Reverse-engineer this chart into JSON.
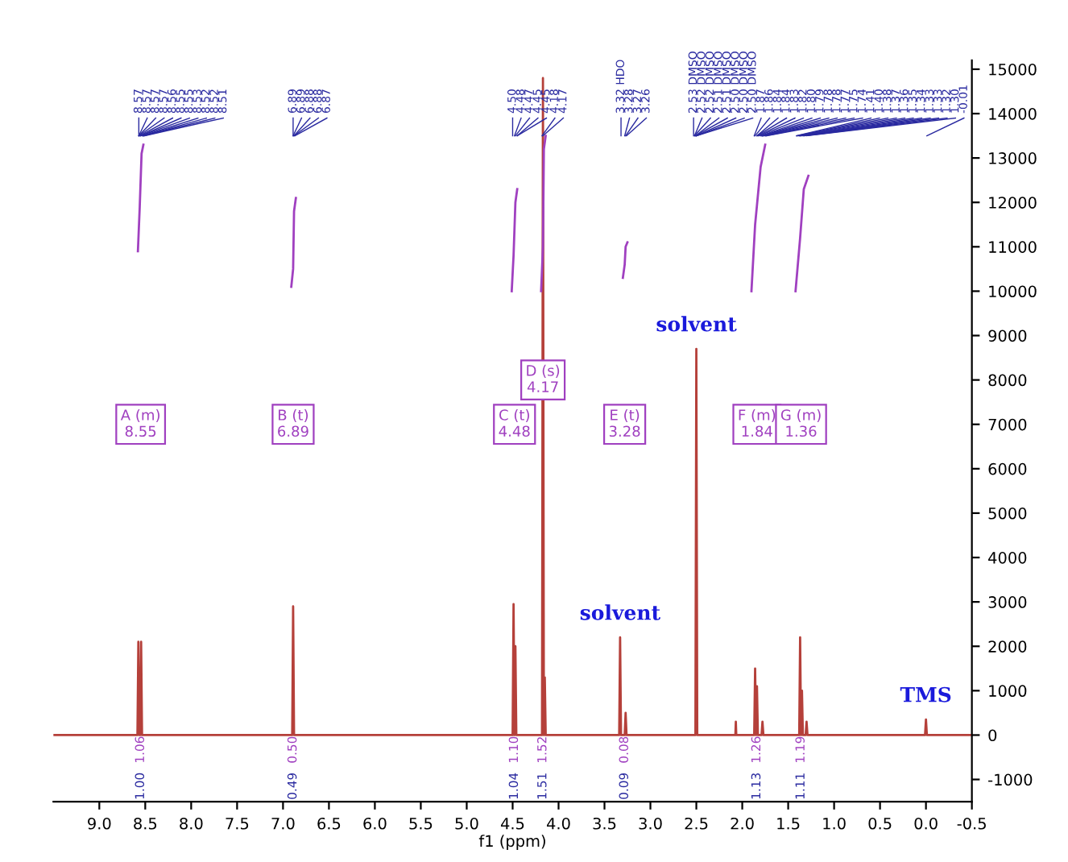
{
  "chart_data": {
    "type": "line",
    "xlabel": "f1 (ppm)",
    "xlim": [
      9.5,
      -0.5
    ],
    "xticks": [
      {
        "value": 9,
        "label": "9.0"
      },
      {
        "value": 8.5,
        "label": "8.5"
      },
      {
        "value": 8,
        "label": "8.0"
      },
      {
        "value": 7.5,
        "label": "7.5"
      },
      {
        "value": 7,
        "label": "7.0"
      },
      {
        "value": 6.5,
        "label": "6.5"
      },
      {
        "value": 6,
        "label": "6.0"
      },
      {
        "value": 5.5,
        "label": "5.5"
      },
      {
        "value": 5,
        "label": "5.0"
      },
      {
        "value": 4.5,
        "label": "4.5"
      },
      {
        "value": 4,
        "label": "4.0"
      },
      {
        "value": 3.5,
        "label": "3.5"
      },
      {
        "value": 3,
        "label": "3.0"
      },
      {
        "value": 2.5,
        "label": "2.5"
      },
      {
        "value": 2,
        "label": "2.0"
      },
      {
        "value": 1.5,
        "label": "1.5"
      },
      {
        "value": 1,
        "label": "1.0"
      },
      {
        "value": 0.5,
        "label": "0.5"
      },
      {
        "value": 0,
        "label": "0.0"
      },
      {
        "value": -0.5,
        "label": "-0.5"
      }
    ],
    "ylim": [
      -1500,
      15200
    ],
    "yticks": [
      -1000,
      0,
      1000,
      2000,
      3000,
      4000,
      5000,
      6000,
      7000,
      8000,
      9000,
      10000,
      11000,
      12000,
      13000,
      14000,
      15000
    ],
    "grid": false,
    "legend": false,
    "series": [
      {
        "color": "#b5403a",
        "x": [
          9.5,
          8.585,
          8.575,
          8.565,
          8.555,
          8.545,
          8.535,
          6.9,
          6.89,
          6.88,
          4.5,
          4.49,
          4.48,
          4.47,
          4.46,
          4.18,
          4.17,
          4.16,
          4.15,
          4.14,
          3.34,
          3.33,
          3.32,
          3.28,
          3.27,
          3.26,
          2.51,
          2.5,
          2.49,
          2.075,
          2.07,
          2.065,
          1.87,
          1.86,
          1.85,
          1.84,
          1.83,
          1.79,
          1.78,
          1.77,
          1.38,
          1.37,
          1.36,
          1.35,
          1.34,
          1.31,
          1.3,
          1.29,
          0.01,
          0.0,
          -0.01,
          -0.5
        ],
        "values": [
          0,
          0,
          2100,
          0,
          0,
          2100,
          0,
          0,
          2900,
          0,
          0,
          2950,
          0,
          2000,
          0,
          0,
          14800,
          0,
          1300,
          0,
          0,
          2200,
          0,
          0,
          500,
          0,
          0,
          8700,
          0,
          0,
          300,
          0,
          0,
          1500,
          0,
          1100,
          0,
          0,
          300,
          0,
          0,
          2200,
          0,
          1000,
          0,
          0,
          300,
          0,
          0,
          350,
          0,
          0
        ]
      },
      {
        "color": "#a040c0",
        "x": [
          8.58,
          8.56,
          8.54,
          8.52,
          null,
          6.91,
          6.89,
          6.88,
          6.86,
          null,
          4.51,
          4.49,
          4.47,
          4.45,
          null,
          4.19,
          4.17,
          4.16,
          4.14,
          null,
          3.3,
          3.28,
          3.27,
          3.25,
          null,
          1.9,
          1.86,
          1.8,
          1.75,
          null,
          1.42,
          1.37,
          1.33,
          1.28
        ],
        "values": [
          10900,
          11900,
          13100,
          13300,
          null,
          10100,
          10500,
          11800,
          12100,
          null,
          10000,
          10800,
          12000,
          12300,
          null,
          10000,
          11000,
          13200,
          13500,
          null,
          10300,
          10600,
          11000,
          11100,
          null,
          10000,
          11500,
          12800,
          13300,
          null,
          10000,
          11200,
          12300,
          12600
        ]
      }
    ],
    "annotations": [
      {
        "text": "A (m)\n8.55",
        "x": 8.55,
        "y": 7000
      },
      {
        "text": "B (t)\n6.89",
        "x": 6.89,
        "y": 7000
      },
      {
        "text": "C (t)\n4.48",
        "x": 4.48,
        "y": 7000
      },
      {
        "text": "D (s)\n4.17",
        "x": 4.17,
        "y": 8000
      },
      {
        "text": "E (t)\n3.28",
        "x": 3.28,
        "y": 7000
      },
      {
        "text": "F (m)\n1.84",
        "x": 1.84,
        "y": 7000
      },
      {
        "text": "G (m)\n1.36",
        "x": 1.36,
        "y": 7000
      },
      {
        "text": "solvent",
        "x": 3.33,
        "y": 2200
      },
      {
        "text": "solvent",
        "x": 2.5,
        "y": 8700
      },
      {
        "text": "TMS",
        "x": 0.0,
        "y": 350
      },
      "1.00",
      "1.06",
      "0.49",
      "0.50",
      "1.04",
      "1.10",
      "1.51",
      "1.52",
      "0.09",
      "0.08",
      "1.13",
      "1.26",
      "1.11",
      "1.19",
      "8.57",
      "8.57",
      "8.57",
      "8.57",
      "8.56",
      "8.55",
      "8.55",
      "8.53",
      "8.52",
      "8.52",
      "8.51",
      "6.89",
      "6.89",
      "6.88",
      "6.88",
      "6.87",
      "4.50",
      "4.48",
      "4.47",
      "4.45",
      "4.45",
      "4.18",
      "4.17",
      "3.32 HDO",
      "3.28",
      "3.27",
      "3.26",
      "2.53 DMSO",
      "2.52 DMSO",
      "2.52 DMSO",
      "2.51 DMSO",
      "2.51 DMSO",
      "2.50 DMSO",
      "2.50 DMSO",
      "2.50 DMSO",
      "1.87",
      "1.86",
      "1.84",
      "1.84",
      "1.83",
      "1.82",
      "1.80",
      "1.79",
      "1.78",
      "1.78",
      "1.77",
      "1.75",
      "1.74",
      "1.41",
      "1.40",
      "1.38",
      "1.37",
      "1.36",
      "1.35",
      "1.34",
      "1.33",
      "1.33",
      "1.32",
      "1.30",
      "-0.01"
    ]
  }
}
